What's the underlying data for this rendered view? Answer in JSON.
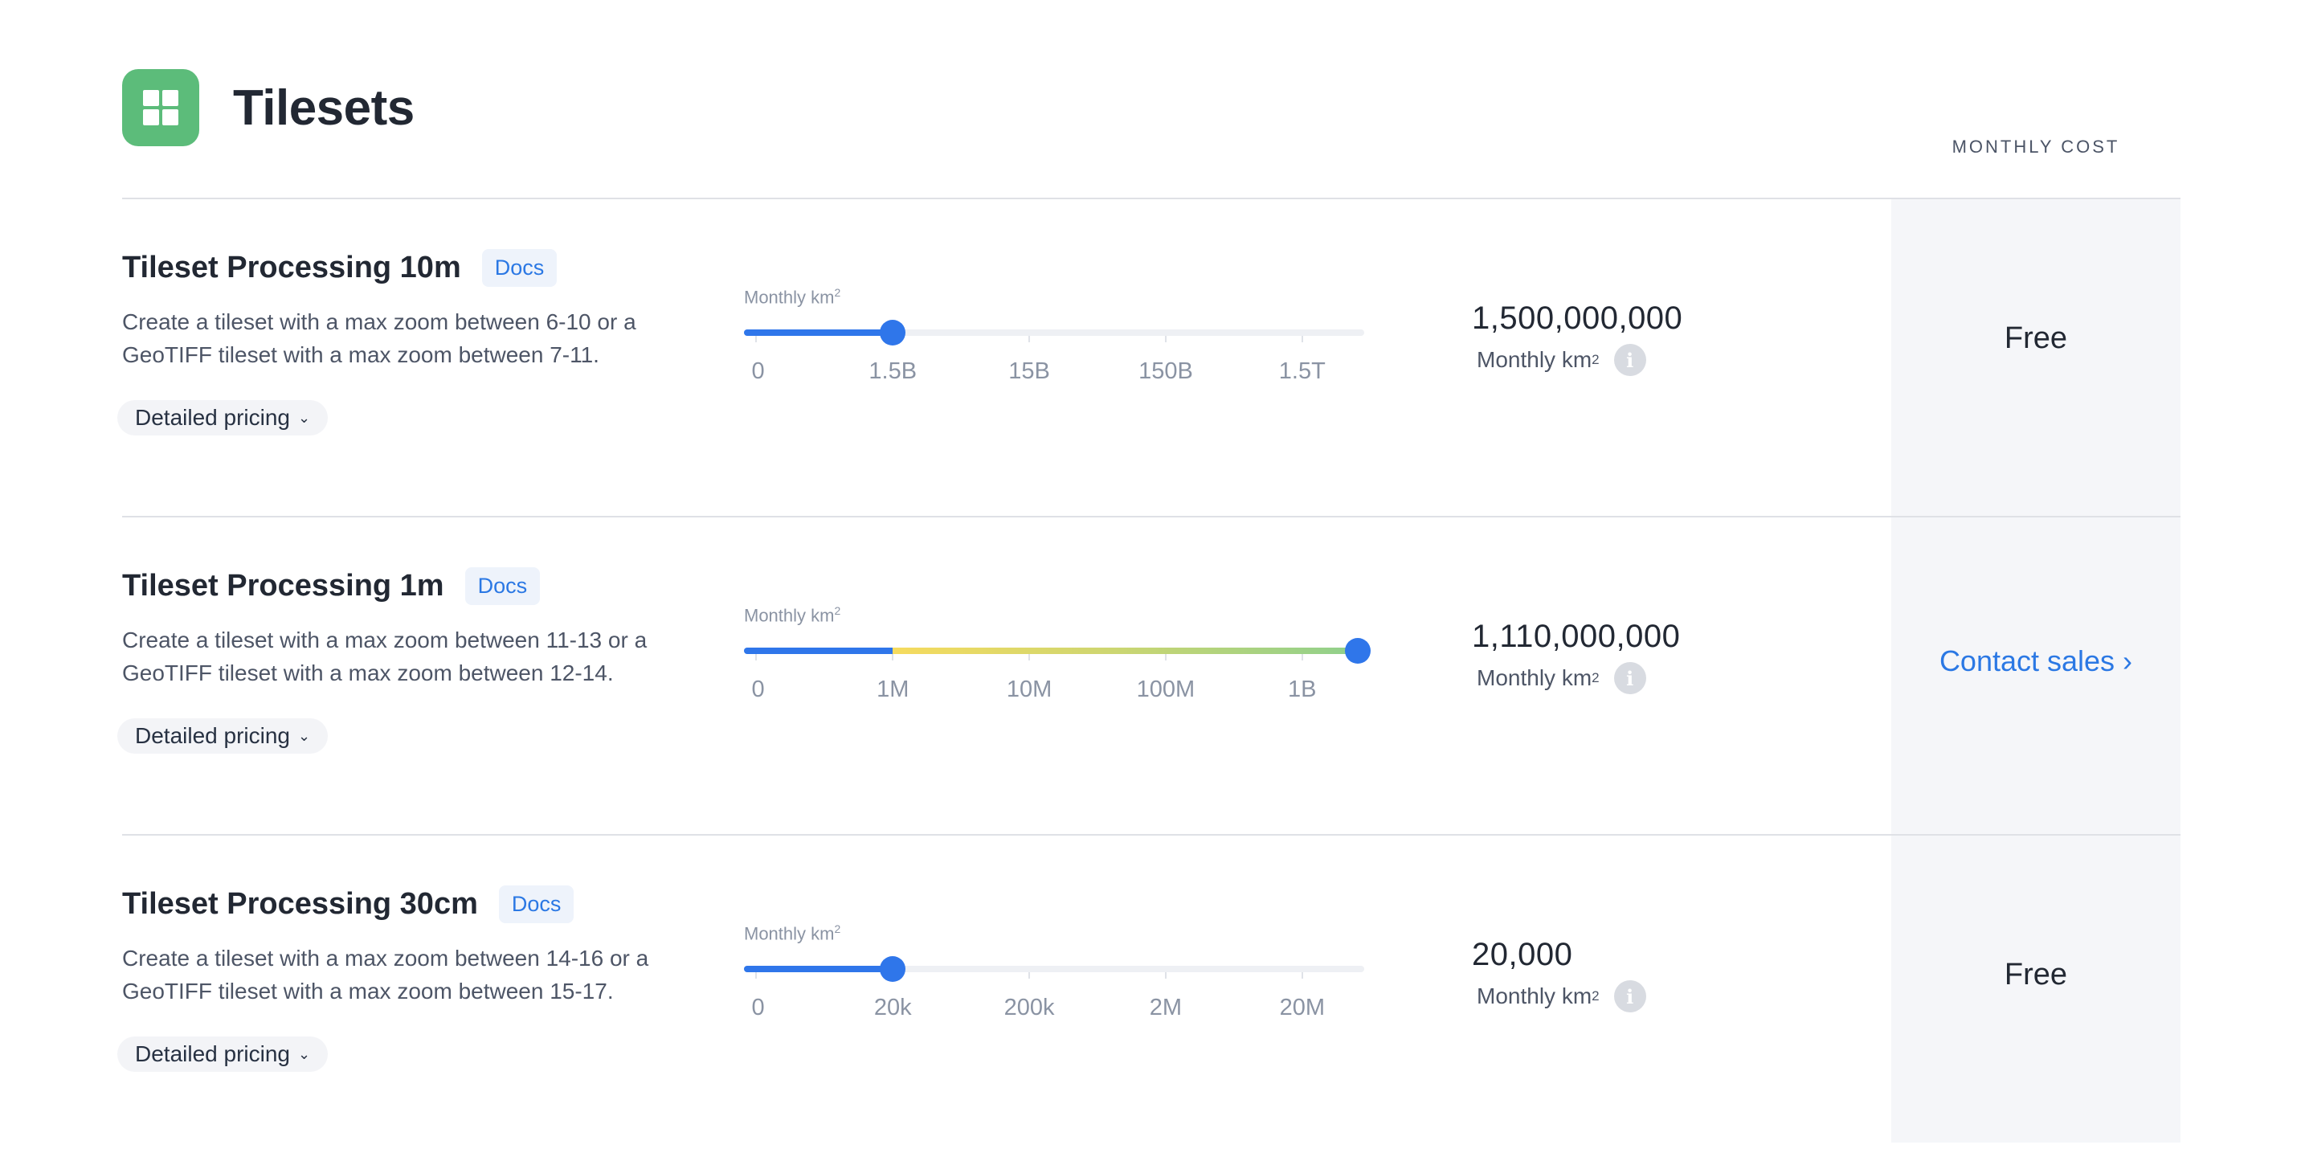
{
  "header": {
    "title": "Tilesets",
    "logo_icon": "grid-icon",
    "logo_color": "#5cbc7a",
    "monthly_cost_label": "MONTHLY COST"
  },
  "rows": [
    {
      "title": "Tileset Processing 10m",
      "docs_label": "Docs",
      "description": "Create a tileset with a max zoom between 6-10 or a GeoTIFF tileset with a max zoom between 7-11.",
      "pricing_label": "Detailed pricing",
      "slider_label": "Monthly km",
      "slider_unit_exp": "2",
      "ticks": [
        "0",
        "1.5B",
        "15B",
        "150B",
        "1.5T"
      ],
      "slider_position": 0.22,
      "value": "1,500,000,000",
      "unit_label": "Monthly km",
      "unit_exp": "2",
      "cost": "Free"
    },
    {
      "title": "Tileset Processing 1m",
      "docs_label": "Docs",
      "description": "Create a tileset with a max zoom between 11-13 or a GeoTIFF tileset with a max zoom between 12-14.",
      "pricing_label": "Detailed pricing",
      "slider_label": "Monthly km",
      "slider_unit_exp": "2",
      "ticks": [
        "0",
        "1M",
        "10M",
        "100M",
        "1B"
      ],
      "slider_position": 1.0,
      "value": "1,110,000,000",
      "unit_label": "Monthly km",
      "unit_exp": "2",
      "cost": "Contact sales ›"
    },
    {
      "title": "Tileset Processing 30cm",
      "docs_label": "Docs",
      "description": "Create a tileset with a max zoom between 14-16 or a GeoTIFF tileset with a max zoom between 15-17.",
      "pricing_label": "Detailed pricing",
      "slider_label": "Monthly km",
      "slider_unit_exp": "2",
      "ticks": [
        "0",
        "20k",
        "200k",
        "2M",
        "20M"
      ],
      "slider_position": 0.22,
      "value": "20,000",
      "unit_label": "Monthly km",
      "unit_exp": "2",
      "cost": "Free"
    }
  ],
  "colors": {
    "accent": "#2f76ea",
    "link": "#2b78e4",
    "free_tier_gradient": [
      "#f6db5e",
      "#8fd08c"
    ]
  },
  "icons": {
    "info": "info-icon",
    "chevron": "chevron-down-icon"
  }
}
